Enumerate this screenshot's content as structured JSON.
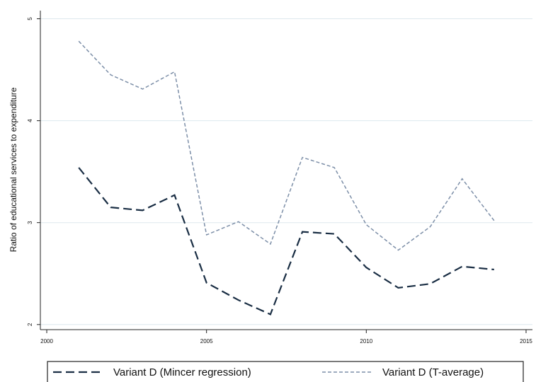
{
  "chart_data": {
    "type": "line",
    "y_label": "Ratio of educational services to expenditure",
    "x": [
      2001,
      2002,
      2003,
      2004,
      2005,
      2006,
      2007,
      2008,
      2009,
      2010,
      2011,
      2012,
      2013,
      2014
    ],
    "series": [
      {
        "name": "Variant D (Mincer regression)",
        "color": "#1a2e44",
        "dash": "12,6",
        "width": 2.2,
        "values": [
          3.54,
          3.15,
          3.12,
          3.27,
          2.41,
          2.24,
          2.1,
          2.91,
          2.89,
          2.56,
          2.36,
          2.4,
          2.57,
          2.54
        ]
      },
      {
        "name": "Variant D (T-average)",
        "color": "#7d8fa8",
        "dash": "5,3",
        "width": 1.5,
        "values": [
          4.78,
          4.45,
          4.31,
          4.48,
          2.88,
          3.01,
          2.79,
          3.64,
          3.54,
          2.98,
          2.73,
          2.96,
          3.43,
          3.02
        ]
      }
    ],
    "xlim": [
      1999.8,
      2015.2
    ],
    "xticks": [
      2000,
      2005,
      2010,
      2015
    ],
    "ylim": [
      1.95,
      5.08
    ],
    "yticks": [
      2,
      3,
      4,
      5
    ],
    "grid": true
  }
}
